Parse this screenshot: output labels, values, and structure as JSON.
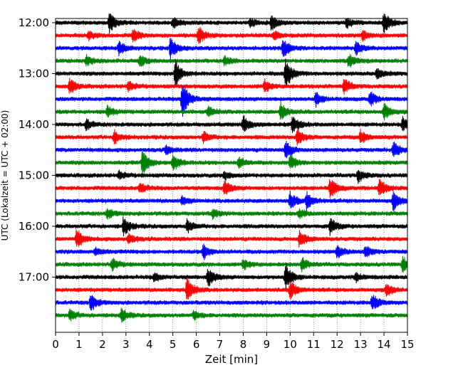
{
  "chart_data": {
    "type": "line",
    "subtype": "helicorder",
    "xlabel": "Zeit  [min]",
    "ylabel": "UTC (Lokalzeit = UTC + 02:00)",
    "xlim": [
      0,
      15
    ],
    "xticks": [
      0,
      1,
      2,
      3,
      4,
      5,
      6,
      7,
      8,
      9,
      10,
      11,
      12,
      13,
      14,
      15
    ],
    "ylim": [
      "11:55",
      "18:05"
    ],
    "y_tick_labels": [
      "12:00",
      "13:00",
      "14:00",
      "15:00",
      "16:00",
      "17:00"
    ],
    "trace_interval_minutes": 15,
    "grid": "vertical dotted lines at every minute",
    "color_cycle": [
      "#000000",
      "#ff0000",
      "#0000ff",
      "#008000"
    ],
    "traces": [
      {
        "start": "12:00",
        "color": "#000000",
        "events": [
          {
            "t": 2.3,
            "a": 0.9
          },
          {
            "t": 5.0,
            "a": 0.5
          },
          {
            "t": 8.3,
            "a": 0.4
          },
          {
            "t": 9.2,
            "a": 0.7
          },
          {
            "t": 12.4,
            "a": 0.5
          },
          {
            "t": 14.0,
            "a": 1.0
          }
        ]
      },
      {
        "start": "12:15",
        "color": "#ff0000",
        "events": [
          {
            "t": 1.4,
            "a": 0.4
          },
          {
            "t": 3.3,
            "a": 0.6
          },
          {
            "t": 6.1,
            "a": 0.8
          },
          {
            "t": 9.3,
            "a": 0.4
          },
          {
            "t": 13.1,
            "a": 0.5
          }
        ]
      },
      {
        "start": "12:30",
        "color": "#0000ff",
        "events": [
          {
            "t": 2.7,
            "a": 0.6
          },
          {
            "t": 4.9,
            "a": 1.0
          },
          {
            "t": 9.7,
            "a": 0.9
          },
          {
            "t": 12.8,
            "a": 0.7
          }
        ]
      },
      {
        "start": "12:45",
        "color": "#008000",
        "events": [
          {
            "t": 1.3,
            "a": 0.5
          },
          {
            "t": 3.6,
            "a": 0.5
          },
          {
            "t": 7.2,
            "a": 0.4
          },
          {
            "t": 12.5,
            "a": 0.6
          }
        ]
      },
      {
        "start": "13:00",
        "color": "#000000",
        "events": [
          {
            "t": 5.1,
            "a": 1.3
          },
          {
            "t": 9.8,
            "a": 1.5
          },
          {
            "t": 13.7,
            "a": 0.5
          }
        ]
      },
      {
        "start": "13:15",
        "color": "#ff0000",
        "events": [
          {
            "t": 0.6,
            "a": 0.7
          },
          {
            "t": 3.1,
            "a": 0.5
          },
          {
            "t": 8.9,
            "a": 0.6
          },
          {
            "t": 12.3,
            "a": 0.7
          }
        ]
      },
      {
        "start": "13:30",
        "color": "#0000ff",
        "events": [
          {
            "t": 5.4,
            "a": 1.9
          },
          {
            "t": 11.1,
            "a": 0.6
          },
          {
            "t": 13.4,
            "a": 0.7
          }
        ]
      },
      {
        "start": "13:45",
        "color": "#008000",
        "events": [
          {
            "t": 2.2,
            "a": 0.5
          },
          {
            "t": 6.5,
            "a": 0.5
          },
          {
            "t": 9.6,
            "a": 0.8
          },
          {
            "t": 14.0,
            "a": 0.8
          }
        ]
      },
      {
        "start": "14:00",
        "color": "#000000",
        "events": [
          {
            "t": 1.3,
            "a": 0.5
          },
          {
            "t": 8.0,
            "a": 0.8
          },
          {
            "t": 10.1,
            "a": 0.9
          },
          {
            "t": 14.8,
            "a": 0.6
          }
        ]
      },
      {
        "start": "14:15",
        "color": "#ff0000",
        "events": [
          {
            "t": 2.5,
            "a": 0.6
          },
          {
            "t": 6.3,
            "a": 0.5
          },
          {
            "t": 10.3,
            "a": 0.8
          },
          {
            "t": 13.0,
            "a": 0.6
          }
        ]
      },
      {
        "start": "14:30",
        "color": "#0000ff",
        "events": [
          {
            "t": 4.7,
            "a": 0.4
          },
          {
            "t": 9.8,
            "a": 0.9
          },
          {
            "t": 14.4,
            "a": 0.8
          }
        ]
      },
      {
        "start": "14:45",
        "color": "#008000",
        "events": [
          {
            "t": 3.7,
            "a": 1.2
          },
          {
            "t": 5.0,
            "a": 0.9
          },
          {
            "t": 7.8,
            "a": 0.5
          },
          {
            "t": 10.0,
            "a": 0.7
          }
        ]
      },
      {
        "start": "15:00",
        "color": "#000000",
        "events": [
          {
            "t": 2.7,
            "a": 0.4
          },
          {
            "t": 7.2,
            "a": 0.4
          },
          {
            "t": 12.9,
            "a": 0.6
          }
        ]
      },
      {
        "start": "15:15",
        "color": "#ff0000",
        "events": [
          {
            "t": 3.6,
            "a": 0.5
          },
          {
            "t": 7.2,
            "a": 0.7
          },
          {
            "t": 11.7,
            "a": 1.0
          },
          {
            "t": 13.8,
            "a": 0.9
          }
        ]
      },
      {
        "start": "15:30",
        "color": "#0000ff",
        "events": [
          {
            "t": 5.4,
            "a": 0.4
          },
          {
            "t": 10.0,
            "a": 0.8
          },
          {
            "t": 10.7,
            "a": 0.8
          },
          {
            "t": 14.4,
            "a": 0.9
          }
        ]
      },
      {
        "start": "15:45",
        "color": "#008000",
        "events": [
          {
            "t": 2.2,
            "a": 0.5
          },
          {
            "t": 6.7,
            "a": 0.4
          },
          {
            "t": 10.4,
            "a": 0.4
          }
        ]
      },
      {
        "start": "16:00",
        "color": "#000000",
        "events": [
          {
            "t": 2.9,
            "a": 0.9
          },
          {
            "t": 5.6,
            "a": 0.6
          },
          {
            "t": 11.7,
            "a": 0.8
          }
        ]
      },
      {
        "start": "16:15",
        "color": "#ff0000",
        "events": [
          {
            "t": 0.9,
            "a": 0.9
          },
          {
            "t": 3.1,
            "a": 0.5
          },
          {
            "t": 10.4,
            "a": 0.8
          }
        ]
      },
      {
        "start": "16:30",
        "color": "#0000ff",
        "events": [
          {
            "t": 1.7,
            "a": 0.4
          },
          {
            "t": 6.3,
            "a": 0.7
          },
          {
            "t": 12.0,
            "a": 0.6
          },
          {
            "t": 13.2,
            "a": 0.5
          }
        ]
      },
      {
        "start": "16:45",
        "color": "#008000",
        "events": [
          {
            "t": 2.4,
            "a": 0.6
          },
          {
            "t": 8.0,
            "a": 0.5
          },
          {
            "t": 10.5,
            "a": 0.6
          },
          {
            "t": 14.8,
            "a": 0.7
          }
        ]
      },
      {
        "start": "17:00",
        "color": "#000000",
        "events": [
          {
            "t": 4.2,
            "a": 0.4
          },
          {
            "t": 6.5,
            "a": 0.9
          },
          {
            "t": 9.8,
            "a": 1.3
          },
          {
            "t": 12.8,
            "a": 0.4
          }
        ]
      },
      {
        "start": "17:15",
        "color": "#ff0000",
        "events": [
          {
            "t": 5.6,
            "a": 1.2
          },
          {
            "t": 10.0,
            "a": 0.9
          },
          {
            "t": 14.1,
            "a": 0.6
          }
        ]
      },
      {
        "start": "17:30",
        "color": "#0000ff",
        "events": [
          {
            "t": 1.5,
            "a": 0.8
          },
          {
            "t": 13.5,
            "a": 0.8
          }
        ]
      },
      {
        "start": "17:45",
        "color": "#008000",
        "events": [
          {
            "t": 0.6,
            "a": 0.5
          },
          {
            "t": 2.8,
            "a": 0.6
          },
          {
            "t": 5.9,
            "a": 0.4
          }
        ]
      }
    ]
  }
}
